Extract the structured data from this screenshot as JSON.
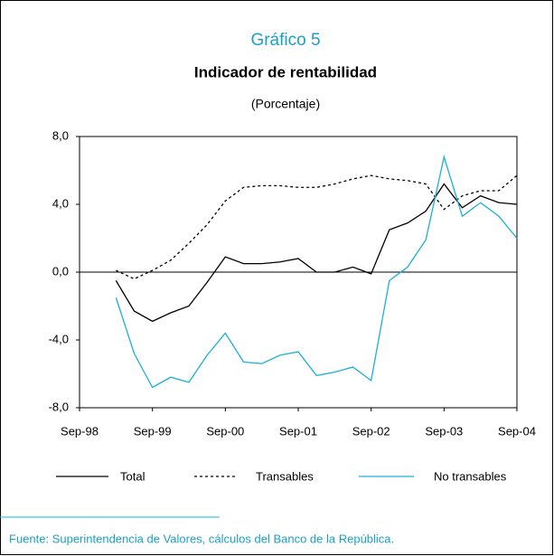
{
  "chart_data": {
    "type": "line",
    "title_prefix": "Gráfico 5",
    "title": "Indicador de rentabilidad",
    "subtitle": "(Porcentaje)",
    "source": "Fuente: Superintendencia de Valores, cálculos del Banco de la República.",
    "categories": [
      "Sep-98",
      null,
      null,
      null,
      "Sep-99",
      null,
      null,
      null,
      "Sep-00",
      null,
      null,
      null,
      "Sep-01",
      null,
      null,
      null,
      "Sep-02",
      null,
      null,
      null,
      "Sep-03",
      null,
      null,
      null,
      "Sep-04"
    ],
    "series": [
      {
        "name": "Total",
        "color": "#000000",
        "dash": "solid",
        "values": [
          null,
          null,
          -0.5,
          -2.3,
          -2.9,
          -2.4,
          -2.0,
          -0.6,
          0.9,
          0.5,
          0.5,
          0.6,
          0.8,
          0.0,
          0.0,
          0.3,
          -0.1,
          2.5,
          2.9,
          3.6,
          5.2,
          3.8,
          4.5,
          4.1,
          4.0
        ]
      },
      {
        "name": "Transables",
        "color": "#000000",
        "dash": "dashed",
        "values": [
          null,
          null,
          0.1,
          -0.4,
          0.1,
          0.7,
          1.7,
          2.8,
          4.2,
          5.0,
          5.1,
          5.1,
          5.0,
          5.0,
          5.2,
          5.5,
          5.7,
          5.5,
          5.4,
          5.2,
          3.7,
          4.5,
          4.8,
          4.8,
          5.7
        ]
      },
      {
        "name": "No transables",
        "color": "#1ab0d8",
        "dash": "solid",
        "values": [
          null,
          null,
          -1.5,
          -4.8,
          -6.8,
          -6.2,
          -6.5,
          -4.9,
          -3.6,
          -5.3,
          -5.4,
          -4.9,
          -4.7,
          -6.1,
          -5.9,
          -5.6,
          -6.4,
          -0.5,
          0.3,
          1.9,
          6.8,
          3.3,
          4.1,
          3.3,
          2.0
        ]
      }
    ],
    "ylim": [
      -8,
      8
    ],
    "yticks": [
      {
        "value": -8,
        "label": "-8,0"
      },
      {
        "value": -4,
        "label": "-4,0"
      },
      {
        "value": 0,
        "label": "0,0"
      },
      {
        "value": 4,
        "label": "4,0"
      },
      {
        "value": 8,
        "label": "8,0"
      }
    ],
    "legend": "bottom"
  }
}
